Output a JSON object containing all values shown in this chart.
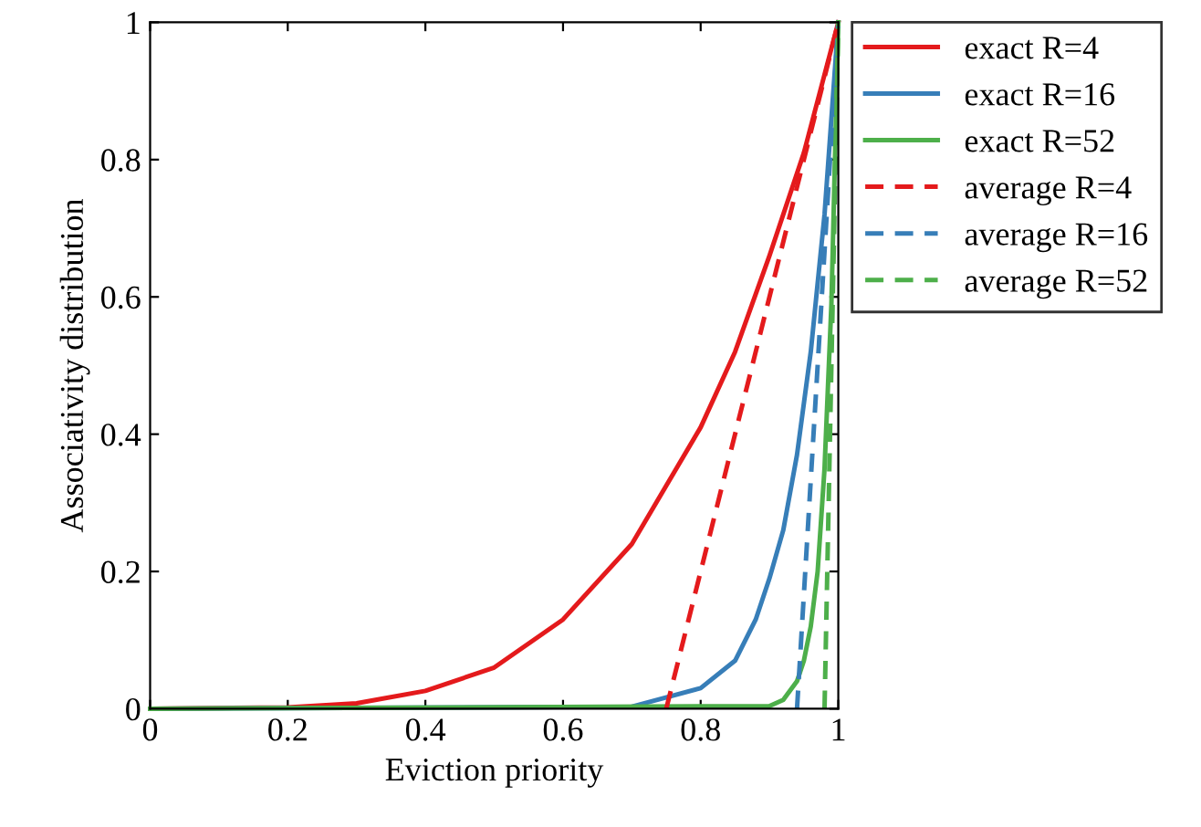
{
  "chart_data": {
    "type": "line",
    "xlabel": "Eviction priority",
    "ylabel": "Associativity distribution",
    "xlim": [
      0,
      1
    ],
    "ylim": [
      0,
      1
    ],
    "xticks": [
      0,
      0.2,
      0.4,
      0.6,
      0.8,
      1
    ],
    "yticks": [
      0,
      0.2,
      0.4,
      0.6,
      0.8,
      1
    ],
    "grid": false,
    "legend": "right",
    "marker": "none",
    "series": [
      {
        "name": "exact R=4",
        "color": "#e41a1c",
        "line_style": "solid",
        "x": [
          0,
          0.2,
          0.3,
          0.4,
          0.5,
          0.6,
          0.7,
          0.8,
          0.85,
          0.9,
          0.95,
          1
        ],
        "values": [
          0,
          0.002,
          0.008,
          0.026,
          0.06,
          0.13,
          0.24,
          0.41,
          0.52,
          0.66,
          0.81,
          1
        ]
      },
      {
        "name": "exact R=16",
        "color": "#377eb8",
        "line_style": "solid",
        "x": [
          0,
          0.7,
          0.8,
          0.85,
          0.88,
          0.9,
          0.92,
          0.94,
          0.96,
          0.98,
          1
        ],
        "values": [
          0,
          0.003,
          0.03,
          0.07,
          0.13,
          0.19,
          0.26,
          0.37,
          0.52,
          0.72,
          1
        ]
      },
      {
        "name": "exact R=52",
        "color": "#4daf4a",
        "line_style": "solid",
        "x": [
          0,
          0.9,
          0.92,
          0.94,
          0.95,
          0.96,
          0.97,
          0.98,
          0.99,
          1
        ],
        "values": [
          0,
          0.004,
          0.013,
          0.04,
          0.07,
          0.12,
          0.2,
          0.35,
          0.59,
          1
        ]
      },
      {
        "name": "average R=4",
        "color": "#e41a1c",
        "line_style": "dashed",
        "x": [
          0.75,
          1
        ],
        "values": [
          0,
          1
        ]
      },
      {
        "name": "average R=16",
        "color": "#377eb8",
        "line_style": "dashed",
        "x": [
          0.94,
          1
        ],
        "values": [
          0,
          1
        ]
      },
      {
        "name": "average R=52",
        "color": "#4daf4a",
        "line_style": "dashed",
        "x": [
          0.98,
          1
        ],
        "values": [
          0,
          1
        ]
      }
    ]
  }
}
